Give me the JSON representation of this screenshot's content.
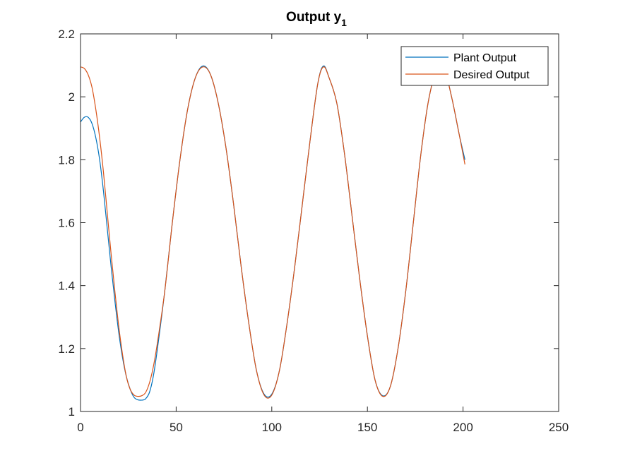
{
  "chart_data": {
    "type": "line",
    "title": "Output y",
    "title_subscript": "1",
    "xlabel": "",
    "ylabel": "",
    "xlim": [
      0,
      250
    ],
    "ylim": [
      1,
      2.2
    ],
    "xticks": [
      0,
      50,
      100,
      150,
      200,
      250
    ],
    "yticks": [
      1,
      1.2,
      1.4,
      1.6,
      1.8,
      2,
      2.2
    ],
    "xtick_labels": [
      "0",
      "50",
      "100",
      "150",
      "200",
      "250"
    ],
    "ytick_labels": [
      "1",
      "1.2",
      "1.4",
      "1.6",
      "1.8",
      "2",
      "2.2"
    ],
    "grid": false,
    "legend_position": "top-right",
    "series": [
      {
        "name": "Plant Output",
        "color": "#0072BD",
        "x": [
          0,
          2,
          4,
          6,
          8,
          10,
          12,
          14,
          16,
          18,
          20,
          22,
          24,
          26,
          28,
          30,
          32,
          33,
          34,
          36,
          38,
          40,
          44,
          48,
          52,
          56,
          60,
          64,
          68,
          72,
          76,
          80,
          84,
          88,
          92,
          96,
          100,
          104,
          108,
          112,
          116,
          120,
          124,
          127,
          130,
          134,
          138,
          142,
          146,
          150,
          154,
          158,
          162,
          166,
          170,
          174,
          178,
          182,
          186,
          190,
          194,
          198,
          201
        ],
        "y": [
          1.92,
          1.935,
          1.935,
          1.915,
          1.87,
          1.8,
          1.7,
          1.58,
          1.46,
          1.35,
          1.25,
          1.17,
          1.11,
          1.07,
          1.045,
          1.037,
          1.036,
          1.037,
          1.04,
          1.06,
          1.11,
          1.19,
          1.38,
          1.6,
          1.8,
          1.96,
          2.06,
          2.098,
          2.07,
          1.98,
          1.84,
          1.66,
          1.46,
          1.28,
          1.13,
          1.055,
          1.055,
          1.13,
          1.28,
          1.46,
          1.66,
          1.86,
          2.04,
          2.098,
          2.06,
          1.98,
          1.82,
          1.62,
          1.42,
          1.24,
          1.1,
          1.05,
          1.08,
          1.2,
          1.38,
          1.6,
          1.82,
          1.99,
          2.08,
          2.09,
          2.0,
          1.88,
          1.8
        ]
      },
      {
        "name": "Desired Output",
        "color": "#D95319",
        "x": [
          0,
          2,
          4,
          6,
          8,
          10,
          12,
          14,
          16,
          18,
          20,
          22,
          24,
          26,
          28,
          30,
          32,
          34,
          36,
          38,
          40,
          44,
          48,
          52,
          56,
          60,
          64,
          68,
          72,
          76,
          80,
          84,
          88,
          92,
          96,
          100,
          104,
          108,
          112,
          116,
          120,
          124,
          127,
          130,
          134,
          138,
          142,
          146,
          150,
          154,
          158,
          162,
          166,
          170,
          174,
          178,
          182,
          186,
          190,
          194,
          198,
          201
        ],
        "y": [
          2.095,
          2.09,
          2.07,
          2.03,
          1.96,
          1.87,
          1.76,
          1.63,
          1.5,
          1.38,
          1.27,
          1.18,
          1.11,
          1.07,
          1.052,
          1.048,
          1.05,
          1.06,
          1.09,
          1.14,
          1.21,
          1.38,
          1.6,
          1.8,
          1.96,
          2.06,
          2.095,
          2.07,
          1.98,
          1.84,
          1.66,
          1.46,
          1.28,
          1.13,
          1.052,
          1.052,
          1.13,
          1.28,
          1.46,
          1.66,
          1.86,
          2.04,
          2.095,
          2.06,
          1.98,
          1.82,
          1.62,
          1.42,
          1.24,
          1.1,
          1.048,
          1.08,
          1.2,
          1.38,
          1.6,
          1.82,
          1.99,
          2.08,
          2.09,
          2.0,
          1.88,
          1.785
        ]
      }
    ]
  }
}
